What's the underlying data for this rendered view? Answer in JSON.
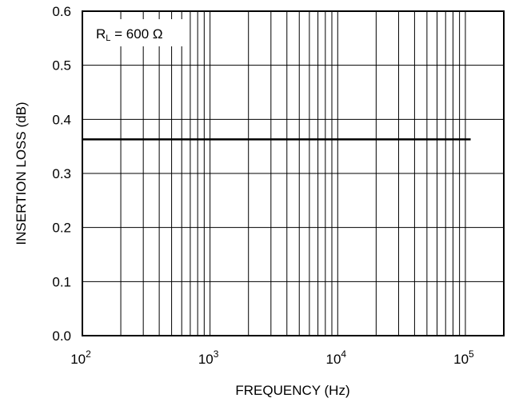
{
  "chart_data": {
    "type": "line",
    "xlabel": "FREQUENCY (Hz)",
    "ylabel": "INSERTION LOSS (dB)",
    "x_scale": "log",
    "xlim": [
      100,
      200000
    ],
    "ylim": [
      0.0,
      0.6
    ],
    "x_ticks": [
      {
        "base": "10",
        "exp": "2",
        "value": 100
      },
      {
        "base": "10",
        "exp": "3",
        "value": 1000
      },
      {
        "base": "10",
        "exp": "4",
        "value": 10000
      },
      {
        "base": "10",
        "exp": "5",
        "value": 100000
      }
    ],
    "y_ticks": [
      "0.0",
      "0.1",
      "0.2",
      "0.3",
      "0.4",
      "0.5",
      "0.6"
    ],
    "grid": true,
    "annotation": {
      "main": "R",
      "sub": "L",
      "rest": " = 600 Ω"
    },
    "series": [
      {
        "x": [
          100,
          110000
        ],
        "y": [
          0.363,
          0.363
        ],
        "color": "#000000"
      }
    ]
  }
}
